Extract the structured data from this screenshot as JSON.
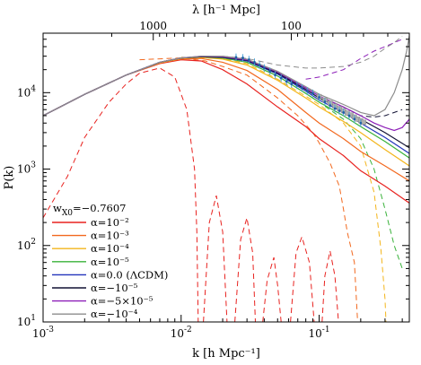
{
  "chart_data": {
    "type": "line",
    "xlabel": "k [h Mpc⁻¹]",
    "ylabel": "P(k)",
    "top_axis_label": "λ [h⁻¹ Mpc]",
    "x_scale": "log",
    "y_scale": "log",
    "xlim": [
      0.001,
      0.45
    ],
    "ylim": [
      10,
      60000
    ],
    "x_ticks": [
      {
        "value": 0.001,
        "mantissa": "10",
        "exp": "-3"
      },
      {
        "value": 0.01,
        "mantissa": "10",
        "exp": "-2"
      },
      {
        "value": 0.1,
        "mantissa": "10",
        "exp": "-1"
      }
    ],
    "y_ticks": [
      {
        "value": 10,
        "mantissa": "10",
        "exp": "1"
      },
      {
        "value": 100,
        "mantissa": "10",
        "exp": "2"
      },
      {
        "value": 1000,
        "mantissa": "10",
        "exp": "3"
      },
      {
        "value": 10000,
        "mantissa": "10",
        "exp": "4"
      }
    ],
    "top_ticks": [
      {
        "label": "1000",
        "k": 0.00628
      },
      {
        "label": "100",
        "k": 0.0628
      }
    ],
    "legend_header": {
      "main": "w",
      "sub": "X0",
      "rest": "=−0.7607"
    },
    "series": [
      {
        "name": "α=10⁻²",
        "color": "#e8221f",
        "solid": [
          [
            0.001,
            5000
          ],
          [
            0.002,
            9500
          ],
          [
            0.004,
            17000
          ],
          [
            0.007,
            24000
          ],
          [
            0.01,
            27000
          ],
          [
            0.014,
            26000
          ],
          [
            0.02,
            20000
          ],
          [
            0.03,
            13000
          ],
          [
            0.05,
            6500
          ],
          [
            0.08,
            3600
          ],
          [
            0.1,
            2500
          ],
          [
            0.15,
            1500
          ],
          [
            0.2,
            950
          ],
          [
            0.3,
            600
          ],
          [
            0.45,
            360
          ]
        ],
        "dashed": [
          [
            0.001,
            230
          ],
          [
            0.0015,
            800
          ],
          [
            0.002,
            2600
          ],
          [
            0.003,
            7500
          ],
          [
            0.004,
            13000
          ],
          [
            0.005,
            18000
          ],
          [
            0.007,
            21000
          ],
          [
            0.009,
            16000
          ],
          [
            0.011,
            6000
          ],
          [
            0.0125,
            1000
          ],
          [
            0.013,
            150
          ],
          [
            0.0133,
            10
          ],
          "B",
          [
            0.0145,
            10
          ],
          [
            0.016,
            200
          ],
          [
            0.018,
            450
          ],
          [
            0.02,
            150
          ],
          [
            0.0215,
            10
          ],
          "B",
          [
            0.0245,
            10
          ],
          [
            0.027,
            120
          ],
          [
            0.03,
            230
          ],
          [
            0.033,
            80
          ],
          [
            0.0345,
            10
          ],
          "B",
          [
            0.039,
            10
          ],
          [
            0.042,
            35
          ],
          [
            0.047,
            70
          ],
          [
            0.05,
            30
          ],
          [
            0.053,
            10
          ],
          "B",
          [
            0.062,
            10
          ],
          [
            0.068,
            80
          ],
          [
            0.075,
            130
          ],
          [
            0.085,
            60
          ],
          [
            0.092,
            10
          ],
          "B",
          [
            0.105,
            10
          ],
          [
            0.11,
            40
          ],
          [
            0.12,
            85
          ],
          [
            0.13,
            40
          ],
          [
            0.138,
            10
          ]
        ]
      },
      {
        "name": "α=10⁻³",
        "color": "#f2681e",
        "solid": [
          [
            0.001,
            5000
          ],
          [
            0.002,
            9500
          ],
          [
            0.004,
            17000
          ],
          [
            0.007,
            24500
          ],
          [
            0.01,
            27500
          ],
          [
            0.014,
            28000
          ],
          [
            0.02,
            25000
          ],
          [
            0.03,
            19500
          ],
          [
            0.05,
            11000
          ],
          [
            0.08,
            5500
          ],
          [
            0.1,
            4000
          ],
          [
            0.15,
            2500
          ],
          [
            0.2,
            1700
          ],
          [
            0.3,
            1100
          ],
          [
            0.45,
            700
          ]
        ],
        "dashed": [
          [
            0.005,
            27000
          ],
          [
            0.01,
            28500
          ],
          [
            0.015,
            26000
          ],
          [
            0.02,
            22000
          ],
          [
            0.03,
            17000
          ],
          [
            0.05,
            8500
          ],
          [
            0.07,
            5000
          ],
          [
            0.09,
            3000
          ],
          [
            0.1,
            2200
          ],
          [
            0.12,
            1200
          ],
          [
            0.14,
            600
          ],
          [
            0.15,
            300
          ],
          [
            0.16,
            150
          ],
          [
            0.18,
            60
          ],
          [
            0.19,
            10
          ]
        ]
      },
      {
        "name": "α=10⁻⁴",
        "color": "#f3b51b",
        "solid": [
          [
            0.001,
            5000
          ],
          [
            0.002,
            9500
          ],
          [
            0.004,
            17000
          ],
          [
            0.007,
            24500
          ],
          [
            0.01,
            28000
          ],
          [
            0.014,
            29000
          ],
          [
            0.02,
            27500
          ],
          [
            0.03,
            23000
          ],
          [
            0.05,
            14500
          ],
          [
            0.08,
            8500
          ],
          [
            0.1,
            6500
          ],
          [
            0.15,
            4200
          ],
          [
            0.2,
            3000
          ],
          [
            0.3,
            1800
          ],
          [
            0.45,
            1100
          ]
        ],
        "dashed": [
          [
            0.01,
            29000
          ],
          [
            0.02,
            28000
          ],
          [
            0.03,
            24000
          ],
          [
            0.05,
            15000
          ],
          [
            0.08,
            9000
          ],
          [
            0.1,
            7000
          ],
          [
            0.15,
            4000
          ],
          [
            0.2,
            2000
          ],
          [
            0.25,
            500
          ],
          [
            0.28,
            90
          ],
          [
            0.3,
            20
          ],
          [
            0.305,
            10
          ]
        ]
      },
      {
        "name": "α=10⁻⁵",
        "color": "#39b23a",
        "solid": [
          [
            0.001,
            5000
          ],
          [
            0.002,
            9500
          ],
          [
            0.004,
            17000
          ],
          [
            0.007,
            25000
          ],
          [
            0.01,
            28500
          ],
          [
            0.014,
            29500
          ],
          [
            0.02,
            28500
          ],
          [
            0.03,
            25000
          ],
          [
            0.05,
            16500
          ],
          [
            0.08,
            9800
          ],
          [
            0.1,
            7500
          ],
          [
            0.15,
            5000
          ],
          [
            0.2,
            3600
          ],
          [
            0.3,
            2300
          ],
          [
            0.45,
            1400
          ]
        ],
        "dashed": [
          [
            0.03,
            25000
          ],
          [
            0.05,
            16500
          ],
          [
            0.08,
            9800
          ],
          [
            0.1,
            7500
          ],
          [
            0.15,
            4500
          ],
          [
            0.2,
            2500
          ],
          [
            0.25,
            1000
          ],
          [
            0.3,
            300
          ],
          [
            0.35,
            100
          ],
          [
            0.4,
            50
          ]
        ]
      },
      {
        "name": "α=0.0 (ΛCDM)",
        "color": "#2233bb",
        "solid": [
          [
            0.001,
            5000
          ],
          [
            0.002,
            9500
          ],
          [
            0.004,
            17000
          ],
          [
            0.007,
            25000
          ],
          [
            0.01,
            28500
          ],
          [
            0.014,
            29500
          ],
          [
            0.02,
            29000
          ],
          [
            0.03,
            26000
          ],
          [
            0.05,
            17500
          ],
          [
            0.08,
            10500
          ],
          [
            0.1,
            8000
          ],
          [
            0.15,
            5500
          ],
          [
            0.2,
            4000
          ],
          [
            0.3,
            2600
          ],
          [
            0.45,
            1600
          ]
        ]
      },
      {
        "name": "α=−10⁻⁵",
        "color": "#111133",
        "solid": [
          [
            0.001,
            5000
          ],
          [
            0.002,
            9500
          ],
          [
            0.004,
            17000
          ],
          [
            0.007,
            25000
          ],
          [
            0.01,
            28500
          ],
          [
            0.014,
            29500
          ],
          [
            0.02,
            29000
          ],
          [
            0.03,
            26500
          ],
          [
            0.05,
            18000
          ],
          [
            0.08,
            11000
          ],
          [
            0.1,
            8500
          ],
          [
            0.15,
            6000
          ],
          [
            0.2,
            4500
          ],
          [
            0.3,
            3000
          ],
          [
            0.45,
            1900
          ]
        ],
        "dashed": [
          [
            0.05,
            18000
          ],
          [
            0.08,
            11500
          ],
          [
            0.1,
            9000
          ],
          [
            0.15,
            6500
          ],
          [
            0.2,
            5000
          ],
          [
            0.25,
            4800
          ],
          [
            0.3,
            5000
          ],
          [
            0.35,
            5500
          ],
          [
            0.4,
            6000
          ]
        ]
      },
      {
        "name": "α=−5×10⁻⁵",
        "color": "#8d1fb8",
        "solid": [
          [
            0.001,
            5000
          ],
          [
            0.002,
            9500
          ],
          [
            0.004,
            17000
          ],
          [
            0.007,
            25000
          ],
          [
            0.01,
            28500
          ],
          [
            0.014,
            30000
          ],
          [
            0.02,
            29500
          ],
          [
            0.03,
            27000
          ],
          [
            0.05,
            18500
          ],
          [
            0.08,
            11500
          ],
          [
            0.1,
            9000
          ],
          [
            0.15,
            6500
          ],
          [
            0.2,
            5000
          ],
          [
            0.25,
            4000
          ],
          [
            0.3,
            3500
          ],
          [
            0.35,
            3200
          ],
          [
            0.4,
            3500
          ],
          [
            0.45,
            4500
          ]
        ],
        "dashed": [
          [
            0.08,
            15000
          ],
          [
            0.1,
            16000
          ],
          [
            0.15,
            20000
          ],
          [
            0.2,
            28000
          ],
          [
            0.25,
            35000
          ],
          [
            0.3,
            40000
          ],
          [
            0.35,
            45000
          ],
          [
            0.4,
            50000
          ]
        ]
      },
      {
        "name": "α=−10⁻⁴",
        "color": "#8c8c8c",
        "solid": [
          [
            0.001,
            5000
          ],
          [
            0.002,
            9500
          ],
          [
            0.004,
            17000
          ],
          [
            0.007,
            25000
          ],
          [
            0.01,
            28500
          ],
          [
            0.014,
            30000
          ],
          [
            0.02,
            30000
          ],
          [
            0.03,
            27500
          ],
          [
            0.05,
            19000
          ],
          [
            0.08,
            12000
          ],
          [
            0.1,
            9500
          ],
          [
            0.15,
            7000
          ],
          [
            0.2,
            5500
          ],
          [
            0.25,
            5000
          ],
          [
            0.3,
            6000
          ],
          [
            0.35,
            10000
          ],
          [
            0.4,
            20000
          ],
          [
            0.43,
            35000
          ],
          [
            0.45,
            55000
          ]
        ],
        "dashed": [
          [
            0.02,
            30000
          ],
          [
            0.03,
            28000
          ],
          [
            0.05,
            23000
          ],
          [
            0.08,
            21000
          ],
          [
            0.1,
            21000
          ],
          [
            0.15,
            22000
          ],
          [
            0.2,
            25000
          ],
          [
            0.25,
            30000
          ],
          [
            0.3,
            38000
          ],
          [
            0.35,
            45000
          ],
          [
            0.4,
            55000
          ]
        ]
      }
    ],
    "data_points": {
      "blue_errorbars": [
        [
          0.025,
          29000
        ],
        [
          0.028,
          28500
        ],
        [
          0.031,
          27000
        ],
        [
          0.034,
          25000
        ],
        [
          0.037,
          23000
        ],
        [
          0.04,
          21000
        ],
        [
          0.044,
          19000
        ],
        [
          0.048,
          17000
        ],
        [
          0.053,
          15500
        ],
        [
          0.058,
          14000
        ],
        [
          0.063,
          13000
        ],
        [
          0.069,
          12500
        ],
        [
          0.075,
          11500
        ],
        [
          0.082,
          10500
        ],
        [
          0.09,
          9800
        ],
        [
          0.1,
          8700
        ],
        [
          0.11,
          7600
        ],
        [
          0.12,
          6800
        ],
        [
          0.13,
          6200
        ],
        [
          0.14,
          5800
        ],
        [
          0.15,
          5500
        ],
        [
          0.165,
          5000
        ],
        [
          0.18,
          4500
        ],
        [
          0.2,
          4000
        ]
      ],
      "gray_squares": [
        [
          0.1,
          8900
        ],
        [
          0.11,
          8000
        ],
        [
          0.12,
          7300
        ],
        [
          0.13,
          6700
        ],
        [
          0.14,
          6200
        ],
        [
          0.15,
          5800
        ],
        [
          0.16,
          5400
        ],
        [
          0.17,
          5100
        ],
        [
          0.18,
          4800
        ],
        [
          0.19,
          4500
        ],
        [
          0.2,
          4300
        ],
        [
          0.21,
          4100
        ]
      ]
    }
  }
}
